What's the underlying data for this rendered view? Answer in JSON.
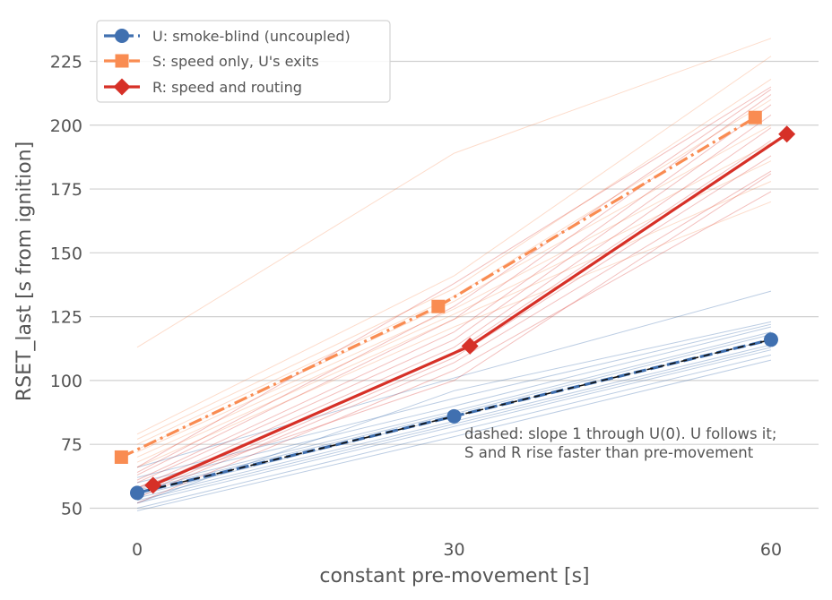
{
  "chart_data": {
    "type": "line",
    "xlabel": "constant pre-movement [s]",
    "ylabel": "RSET_last [s from ignition]",
    "x": [
      0,
      30,
      60
    ],
    "xticks": [
      0,
      30,
      60
    ],
    "yticks": [
      50,
      75,
      100,
      125,
      150,
      175,
      200,
      225
    ],
    "xlim": [
      -4.5,
      64.5
    ],
    "ylim": [
      40,
      242
    ],
    "grid": "y-only",
    "legend_position": "top-left",
    "colors": {
      "U": "#4070b0",
      "S": "#f98c52",
      "R": "#d63027",
      "ref": "#111111"
    },
    "series": [
      {
        "key": "U",
        "name": "U: smoke-blind (uncoupled)",
        "marker": "circle",
        "dash": "dashed",
        "values": [
          56,
          86,
          116
        ],
        "x_offset": 0
      },
      {
        "key": "S",
        "name": "S: speed only, U's exits",
        "marker": "square",
        "dash": "dashdot",
        "values": [
          70,
          129,
          203
        ],
        "x_offset": -1.5
      },
      {
        "key": "R",
        "name": "R: speed and routing",
        "marker": "diamond",
        "dash": "solid",
        "values": [
          59,
          113.5,
          196.5
        ],
        "x_offset": 1.5
      }
    ],
    "reference_line": {
      "x": [
        0,
        60
      ],
      "y": [
        56,
        116
      ]
    },
    "runs": {
      "U": [
        [
          49,
          78,
          108
        ],
        [
          50,
          80,
          110
        ],
        [
          52,
          82,
          112
        ],
        [
          53,
          83,
          113
        ],
        [
          54,
          84,
          114
        ],
        [
          55,
          86,
          116
        ],
        [
          57,
          87,
          118
        ],
        [
          58,
          88,
          119
        ],
        [
          60,
          90,
          121
        ],
        [
          62,
          93,
          122
        ],
        [
          52,
          96,
          123
        ],
        [
          66,
          101,
          135
        ]
      ],
      "S": [
        [
          66,
          121,
          170
        ],
        [
          68,
          124,
          178
        ],
        [
          70,
          126,
          186
        ],
        [
          72,
          128,
          193
        ],
        [
          73,
          131,
          200
        ],
        [
          75,
          133,
          210
        ],
        [
          77,
          136,
          218
        ],
        [
          79,
          141,
          227
        ],
        [
          113,
          189,
          234
        ]
      ],
      "R": [
        [
          52,
          104,
          174
        ],
        [
          54,
          107,
          182
        ],
        [
          55,
          109,
          188
        ],
        [
          57,
          111,
          194
        ],
        [
          58,
          113,
          199
        ],
        [
          60,
          116,
          204
        ],
        [
          61,
          119,
          208
        ],
        [
          63,
          124,
          212
        ],
        [
          64,
          129,
          214
        ],
        [
          66,
          138,
          215
        ],
        [
          58,
          100,
          181
        ]
      ]
    },
    "annotation": [
      "dashed: slope 1 through U(0). U follows it;",
      "S and R rise faster than pre-movement"
    ]
  }
}
